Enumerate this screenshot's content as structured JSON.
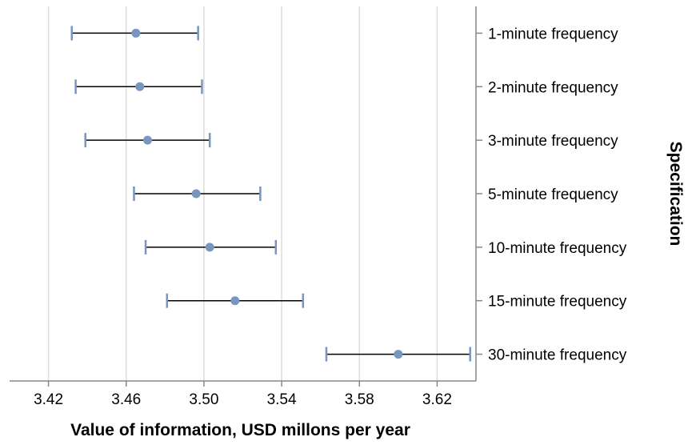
{
  "chart_data": {
    "type": "errorbar",
    "orientation": "horizontal",
    "xlabel": "Value of information, USD millons per year",
    "ylabel": "Specification",
    "xlim": [
      3.4,
      3.64
    ],
    "xticks": [
      "3.42",
      "3.46",
      "3.50",
      "3.54",
      "3.58",
      "3.62"
    ],
    "grid": true,
    "point_color": "#7896bf",
    "cap_color": "#7896bf",
    "error_line_color": "#000000",
    "categories": [
      "1-minute frequency",
      "2-minute frequency",
      "3-minute frequency",
      "5-minute frequency",
      "10-minute frequency",
      "15-minute frequency",
      "30-minute frequency"
    ],
    "values": [
      3.465,
      3.467,
      3.471,
      3.496,
      3.503,
      3.516,
      3.6
    ],
    "lower": [
      3.432,
      3.434,
      3.439,
      3.464,
      3.47,
      3.481,
      3.563
    ],
    "upper": [
      3.497,
      3.499,
      3.503,
      3.529,
      3.537,
      3.551,
      3.637
    ]
  }
}
